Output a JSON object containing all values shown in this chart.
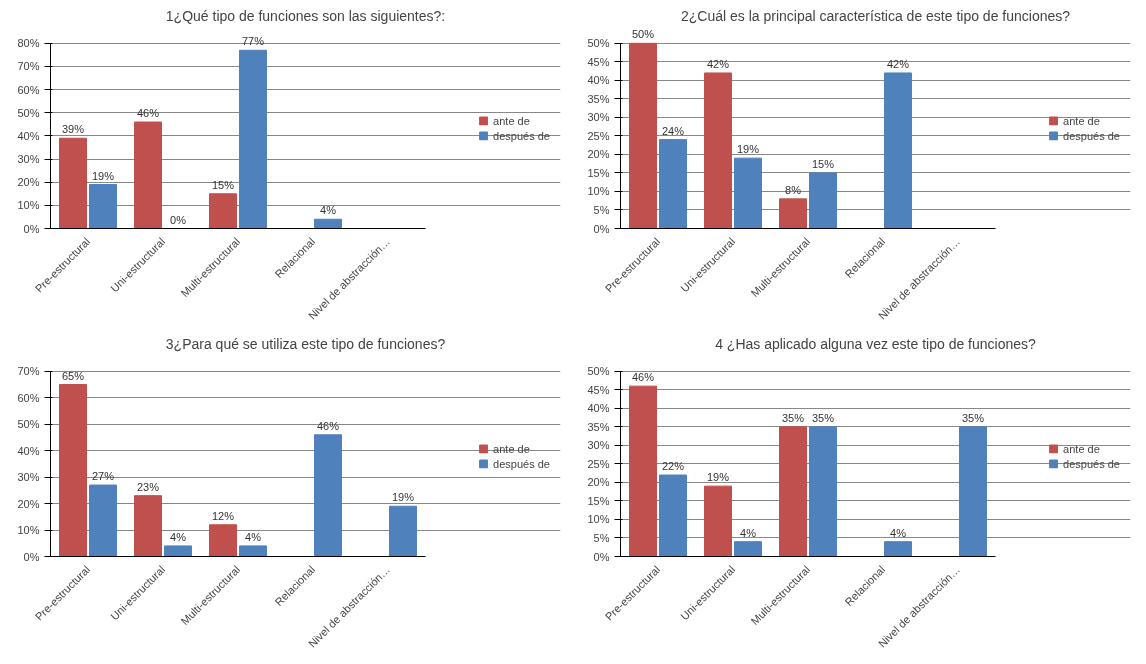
{
  "chart_data": [
    {
      "type": "bar",
      "title": "1¿Qué tipo de funciones son las siguientes?:",
      "categories": [
        "Pre-estructural",
        "Uni-estructural",
        "Multi-estructural",
        "Relacional",
        "Nivel de abstracción…"
      ],
      "series": [
        {
          "name": "ante de",
          "color": "#c0504d",
          "values": [
            39,
            46,
            15,
            null,
            null
          ],
          "value_labels": [
            "39%",
            "46%",
            "15%",
            null,
            null
          ]
        },
        {
          "name": "después de",
          "color": "#4f81bd",
          "values": [
            19,
            0,
            77,
            4,
            null
          ],
          "value_labels": [
            "19%",
            "0%",
            "77%",
            "4%",
            null
          ]
        }
      ],
      "ylim": [
        0,
        80
      ],
      "yticks": [
        {
          "value": 0,
          "label": "0%"
        },
        {
          "value": 10,
          "label": "10%"
        },
        {
          "value": 20,
          "label": "20%"
        },
        {
          "value": 30,
          "label": "30%"
        },
        {
          "value": 40,
          "label": "40%"
        },
        {
          "value": 50,
          "label": "50%"
        },
        {
          "value": 60,
          "label": "60%"
        },
        {
          "value": 70,
          "label": "70%"
        },
        {
          "value": 80,
          "label": "80%"
        }
      ],
      "grid": "y",
      "legend": "right"
    },
    {
      "type": "bar",
      "title": "2¿Cuál es la principal característica de este tipo de funciones?",
      "categories": [
        "Pre-estructural",
        "Uni-estructural",
        "Multi-estructural",
        "Relacional",
        "Nivel de abstracción…"
      ],
      "series": [
        {
          "name": "ante de",
          "color": "#c0504d",
          "values": [
            50,
            42,
            8,
            null,
            null
          ],
          "value_labels": [
            "50%",
            "42%",
            "8%",
            null,
            null
          ]
        },
        {
          "name": "después de",
          "color": "#4f81bd",
          "values": [
            24,
            19,
            15,
            42,
            null
          ],
          "value_labels": [
            "24%",
            "19%",
            "15%",
            "42%",
            null
          ]
        }
      ],
      "ylim": [
        0,
        50
      ],
      "yticks": [
        {
          "value": 0,
          "label": "0%"
        },
        {
          "value": 5,
          "label": "5%"
        },
        {
          "value": 10,
          "label": "10%"
        },
        {
          "value": 15,
          "label": "15%"
        },
        {
          "value": 20,
          "label": "20%"
        },
        {
          "value": 25,
          "label": "25%"
        },
        {
          "value": 30,
          "label": "30%"
        },
        {
          "value": 35,
          "label": "35%"
        },
        {
          "value": 40,
          "label": "40%"
        },
        {
          "value": 45,
          "label": "45%"
        },
        {
          "value": 50,
          "label": "50%"
        }
      ],
      "grid": "y",
      "legend": "right"
    },
    {
      "type": "bar",
      "title": "3¿Para qué se utiliza este tipo de funciones?",
      "categories": [
        "Pre-estructural",
        "Uni-estructural",
        "Multi-estructural",
        "Relacional",
        "Nivel de abstracción…"
      ],
      "series": [
        {
          "name": "ante de",
          "color": "#c0504d",
          "values": [
            65,
            23,
            12,
            null,
            null
          ],
          "value_labels": [
            "65%",
            "23%",
            "12%",
            null,
            null
          ]
        },
        {
          "name": "después de",
          "color": "#4f81bd",
          "values": [
            27,
            4,
            4,
            46,
            19
          ],
          "value_labels": [
            "27%",
            "4%",
            "4%",
            "46%",
            "19%"
          ]
        }
      ],
      "ylim": [
        0,
        70
      ],
      "yticks": [
        {
          "value": 0,
          "label": "0%"
        },
        {
          "value": 10,
          "label": "10%"
        },
        {
          "value": 20,
          "label": "20%"
        },
        {
          "value": 30,
          "label": "30%"
        },
        {
          "value": 40,
          "label": "40%"
        },
        {
          "value": 50,
          "label": "50%"
        },
        {
          "value": 60,
          "label": "60%"
        },
        {
          "value": 70,
          "label": "70%"
        }
      ],
      "grid": "y",
      "legend": "right"
    },
    {
      "type": "bar",
      "title": "4 ¿Has aplicado alguna vez este tipo de funciones?",
      "categories": [
        "Pre-estructural",
        "Uni-estructural",
        "Multi-estructural",
        "Relacional",
        "Nivel de abstracción…"
      ],
      "series": [
        {
          "name": "ante de",
          "color": "#c0504d",
          "values": [
            46,
            19,
            35,
            null,
            null
          ],
          "value_labels": [
            "46%",
            "19%",
            "35%",
            null,
            null
          ]
        },
        {
          "name": "después de",
          "color": "#4f81bd",
          "values": [
            22,
            4,
            35,
            4,
            35
          ],
          "value_labels": [
            "22%",
            "4%",
            "35%",
            "4%",
            "35%"
          ]
        }
      ],
      "ylim": [
        0,
        50
      ],
      "yticks": [
        {
          "value": 0,
          "label": "0%"
        },
        {
          "value": 5,
          "label": "5%"
        },
        {
          "value": 10,
          "label": "10%"
        },
        {
          "value": 15,
          "label": "15%"
        },
        {
          "value": 20,
          "label": "20%"
        },
        {
          "value": 25,
          "label": "25%"
        },
        {
          "value": 30,
          "label": "30%"
        },
        {
          "value": 35,
          "label": "35%"
        },
        {
          "value": 40,
          "label": "40%"
        },
        {
          "value": 45,
          "label": "45%"
        },
        {
          "value": 50,
          "label": "50%"
        }
      ],
      "grid": "y",
      "legend": "right"
    }
  ]
}
